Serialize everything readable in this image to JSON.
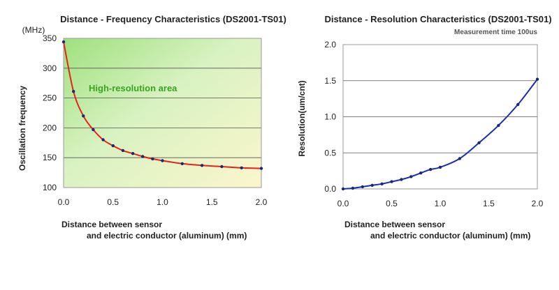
{
  "chart_data": [
    {
      "type": "line",
      "title": "Distance - Frequency Characteristics (DS2001-TS01)",
      "unit_label": "(MHz)",
      "xlabel_line1": "Distance between sensor",
      "xlabel_line2": "and electric conductor (aluminum) (mm)",
      "ylabel": "Oscillation frequency",
      "annotation": "High-resolution area",
      "xlim": [
        0,
        2.0
      ],
      "ylim": [
        100,
        350
      ],
      "x_ticks": [
        "0.0",
        "0.5",
        "1.0",
        "1.5",
        "2.0"
      ],
      "y_ticks": [
        "100",
        "150",
        "200",
        "250",
        "300",
        "350"
      ],
      "grid": "horizontal",
      "line_color": "#e8211c",
      "marker_color": "#1a2a70",
      "series": [
        {
          "x": [
            0.0,
            0.1,
            0.2,
            0.3,
            0.4,
            0.5,
            0.6,
            0.7,
            0.8,
            0.9,
            1.0,
            1.2,
            1.4,
            1.6,
            1.8,
            2.0
          ],
          "values": [
            344,
            261,
            220,
            197,
            180,
            170,
            162,
            157,
            152,
            148,
            145,
            140,
            137,
            135,
            133,
            132
          ]
        }
      ]
    },
    {
      "type": "line",
      "title": "Distance - Resolution Characteristics (DS2001-TS01)",
      "subtitle": "Measurement time 100us",
      "xlabel_line1": "Distance between sensor",
      "xlabel_line2": "and electric conductor (aluminum) (mm)",
      "ylabel": "Resolution(um/cnt)",
      "xlim": [
        0,
        2.0
      ],
      "ylim": [
        0,
        2.0
      ],
      "x_ticks": [
        "0.0",
        "0.5",
        "1.0",
        "1.5",
        "2.0"
      ],
      "y_ticks": [
        "0.0",
        "0.5",
        "1.0",
        "1.5",
        "2.0"
      ],
      "grid": "horizontal",
      "line_color": "#1a2fb0",
      "marker_color": "#1a2a70",
      "series": [
        {
          "x": [
            0.0,
            0.1,
            0.2,
            0.3,
            0.4,
            0.5,
            0.6,
            0.7,
            0.8,
            0.9,
            1.0,
            1.2,
            1.4,
            1.6,
            1.8,
            2.0
          ],
          "values": [
            0.0,
            0.01,
            0.03,
            0.05,
            0.07,
            0.1,
            0.13,
            0.17,
            0.22,
            0.27,
            0.3,
            0.42,
            0.64,
            0.88,
            1.17,
            1.52
          ]
        }
      ]
    }
  ]
}
